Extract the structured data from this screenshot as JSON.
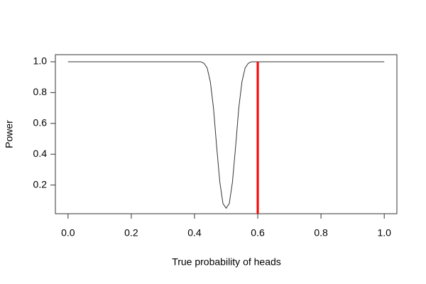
{
  "chart_data": {
    "type": "line",
    "xlabel": "True probability of heads",
    "ylabel": "Power",
    "x": [
      0,
      0.42,
      0.43,
      0.44,
      0.45,
      0.46,
      0.47,
      0.48,
      0.49,
      0.5,
      0.51,
      0.52,
      0.53,
      0.54,
      0.55,
      0.56,
      0.57,
      0.58,
      1
    ],
    "series": [
      {
        "color": "#333333",
        "values": [
          1,
          1,
          0.99,
          0.96,
          0.87,
          0.7,
          0.45,
          0.22,
          0.08,
          0.05,
          0.08,
          0.22,
          0.45,
          0.7,
          0.87,
          0.96,
          0.99,
          1,
          1
        ]
      }
    ],
    "vline": {
      "x": 0.6,
      "y": [
        0,
        1
      ],
      "color": "#ff0000"
    },
    "xlim": [
      -0.04,
      1.04
    ],
    "ylim": [
      0.014,
      1.046
    ],
    "xticks": [
      {
        "value": 0,
        "label": "0.0"
      },
      0.2,
      0.4,
      0.6,
      0.8,
      {
        "value": 1,
        "label": "1.0"
      }
    ],
    "yticks": [
      0.2,
      0.4,
      0.6,
      0.8,
      {
        "value": 1,
        "label": "1.0"
      }
    ]
  }
}
